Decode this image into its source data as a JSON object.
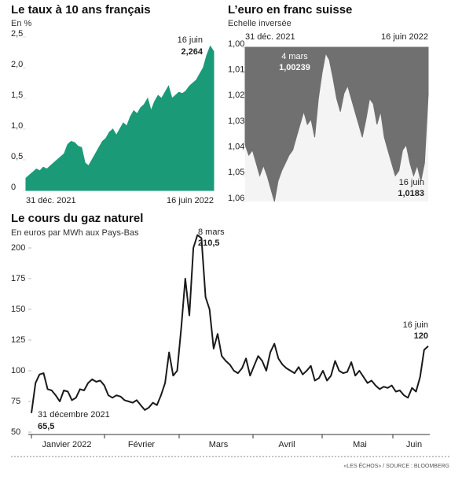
{
  "chart_data": [
    {
      "type": "area",
      "title": "Le taux à 10 ans français",
      "subtitle": "En %",
      "color": "#1b9a78",
      "xtick_labels": [
        "31 déc. 2021",
        "16 juin 2022"
      ],
      "annotations": [
        "16 juin"
      ],
      "ylim": [
        0,
        2.5
      ],
      "yticks": [
        0,
        {
          "value": 0.5,
          "label": "0,5"
        },
        {
          "value": 1.0,
          "label": "1,0"
        },
        {
          "value": 1.5,
          "label": "1,5"
        },
        {
          "value": 2.0,
          "label": "2,0"
        },
        {
          "value": 2.5,
          "label": "2,5"
        }
      ],
      "values": [
        0.2,
        0.25,
        0.3,
        0.35,
        0.32,
        0.38,
        0.35,
        0.4,
        0.45,
        0.5,
        0.55,
        0.6,
        0.75,
        0.8,
        0.78,
        0.72,
        0.7,
        0.45,
        0.4,
        0.5,
        0.6,
        0.7,
        0.8,
        0.85,
        0.95,
        1.0,
        0.9,
        1.0,
        1.1,
        1.05,
        1.2,
        1.3,
        1.25,
        1.35,
        1.4,
        1.5,
        1.3,
        1.45,
        1.55,
        1.5,
        1.6,
        1.7,
        1.5,
        1.55,
        1.6,
        1.58,
        1.62,
        1.7,
        1.75,
        1.8,
        1.9,
        2.0,
        2.2,
        2.35,
        2.264
      ],
      "value_labels": [
        null,
        null,
        null,
        null,
        null,
        null,
        null,
        null,
        null,
        null,
        null,
        null,
        null,
        null,
        null,
        null,
        null,
        null,
        null,
        null,
        null,
        null,
        null,
        null,
        null,
        null,
        null,
        null,
        null,
        null,
        null,
        null,
        null,
        null,
        null,
        null,
        null,
        null,
        null,
        null,
        null,
        null,
        null,
        null,
        null,
        null,
        null,
        null,
        null,
        null,
        null,
        null,
        null,
        null,
        "2,264"
      ]
    },
    {
      "type": "area",
      "title": "L’euro en franc suisse",
      "subtitle": "Echelle inversée",
      "color": "#707070",
      "inverted": true,
      "xtick_labels": [
        "31 déc. 2021",
        "16 juin 2022"
      ],
      "annotations": [
        "4 mars",
        "16 juin"
      ],
      "ylim": [
        1.0,
        1.06
      ],
      "yticks": [
        {
          "value": 1.0,
          "label": "1,00"
        },
        {
          "value": 1.01,
          "label": "1,01"
        },
        {
          "value": 1.02,
          "label": "1,02"
        },
        {
          "value": 1.03,
          "label": "1,03"
        },
        {
          "value": 1.04,
          "label": "1,04"
        },
        {
          "value": 1.05,
          "label": "1,05"
        },
        {
          "value": 1.06,
          "label": "1,06"
        }
      ],
      "values": [
        1.038,
        1.042,
        1.04,
        1.045,
        1.05,
        1.046,
        1.05,
        1.055,
        1.06,
        1.052,
        1.048,
        1.045,
        1.042,
        1.04,
        1.035,
        1.03,
        1.025,
        1.03,
        1.028,
        1.035,
        1.02,
        1.01,
        1.00239,
        1.005,
        1.012,
        1.02,
        1.025,
        1.018,
        1.015,
        1.02,
        1.025,
        1.03,
        1.035,
        1.028,
        1.02,
        1.022,
        1.03,
        1.025,
        1.035,
        1.04,
        1.045,
        1.05,
        1.048,
        1.04,
        1.038,
        1.045,
        1.05,
        1.046,
        1.052,
        1.045,
        1.0183
      ],
      "value_labels": [
        null,
        null,
        null,
        null,
        null,
        null,
        null,
        null,
        null,
        null,
        null,
        null,
        null,
        null,
        null,
        null,
        null,
        null,
        null,
        null,
        null,
        null,
        "1,00239",
        null,
        null,
        null,
        null,
        null,
        null,
        null,
        null,
        null,
        null,
        null,
        null,
        null,
        null,
        null,
        null,
        null,
        null,
        null,
        null,
        null,
        null,
        null,
        null,
        null,
        null,
        null,
        "1,0183"
      ]
    },
    {
      "type": "line",
      "title": "Le cours du gaz naturel",
      "subtitle": "En euros par MWh aux Pays-Bas",
      "color": "#1a1a1a",
      "xtick_labels": [
        "Janvier 2022",
        "Février",
        "Mars",
        "Avril",
        "Mai",
        "Juin"
      ],
      "annotations": [
        "31 décembre 2021",
        "8 mars",
        "16 juin"
      ],
      "ylim": [
        50,
        200
      ],
      "yticks": [
        50,
        75,
        100,
        125,
        150,
        175,
        200
      ],
      "values": [
        65.5,
        90,
        97,
        98,
        85,
        84,
        80,
        75,
        84,
        83,
        76,
        78,
        85,
        84,
        90,
        93,
        91,
        92,
        88,
        80,
        78,
        80,
        79,
        76,
        75,
        74,
        76,
        72,
        68,
        70,
        74,
        72,
        80,
        90,
        115,
        96,
        100,
        135,
        175,
        145,
        200,
        210.5,
        208,
        160,
        150,
        118,
        130,
        112,
        108,
        105,
        100,
        98,
        102,
        110,
        96,
        104,
        112,
        108,
        100,
        115,
        122,
        110,
        105,
        102,
        100,
        98,
        103,
        97,
        100,
        104,
        92,
        94,
        100,
        92,
        96,
        108,
        100,
        98,
        99,
        107,
        96,
        100,
        95,
        90,
        92,
        88,
        85,
        87,
        86,
        88,
        83,
        84,
        80,
        78,
        86,
        83,
        95,
        117,
        120
      ],
      "value_labels": [
        "65,5",
        null,
        null,
        null,
        null,
        null,
        null,
        null,
        null,
        null,
        null,
        null,
        null,
        null,
        null,
        null,
        null,
        null,
        null,
        null,
        null,
        null,
        null,
        null,
        null,
        null,
        null,
        null,
        null,
        null,
        null,
        null,
        null,
        null,
        null,
        null,
        null,
        null,
        null,
        null,
        null,
        "210,5",
        null,
        null,
        null,
        null,
        null,
        null,
        null,
        null,
        null,
        null,
        null,
        null,
        null,
        null,
        null,
        null,
        null,
        null,
        null,
        null,
        null,
        null,
        null,
        null,
        null,
        null,
        null,
        null,
        null,
        null,
        null,
        null,
        null,
        null,
        null,
        null,
        null,
        null,
        null,
        null,
        null,
        null,
        null,
        null,
        null,
        null,
        null,
        null,
        null,
        null,
        null,
        null,
        null,
        null,
        null,
        null,
        null
      ]
    }
  ],
  "source": "«LES ÉCHOS» / SOURCE : BLOOMBERG"
}
